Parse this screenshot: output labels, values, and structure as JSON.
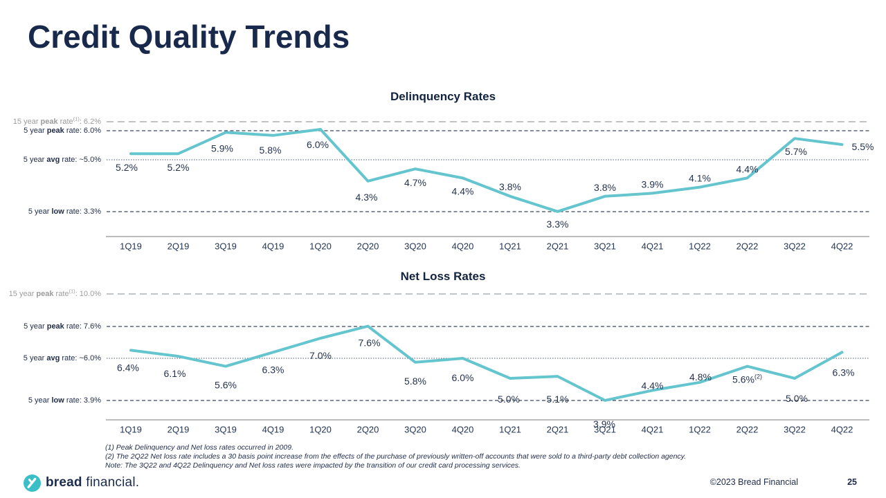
{
  "slide": {
    "title": "Credit Quality Trends",
    "copyright": "©2023 Bread Financial",
    "page_number": "25",
    "logo": {
      "bold": "bread",
      "regular": "financial."
    }
  },
  "colors": {
    "line_teal": "#64c5cf",
    "logo_teal": "#3bbfc6",
    "navy": "#18294b",
    "axis_gray": "#a6a6a6",
    "ref_dark": "#39445a",
    "ref_gray": "#9aa0a6"
  },
  "footnotes": [
    "(1) Peak Delinquency and Net loss rates occurred in 2009.",
    "(2) The 2Q22 Net loss rate includes a 30 basis point increase from the effects of the purchase of previously written-off accounts that were sold to a third-party debt collection agency.",
    "Note: The 3Q22 and 4Q22 Delinquency and Net loss rates were impacted by the transition of our credit card processing services."
  ],
  "chart_data": [
    {
      "type": "line",
      "title": "Delinquency Rates",
      "categories": [
        "1Q19",
        "2Q19",
        "3Q19",
        "4Q19",
        "1Q20",
        "2Q20",
        "3Q20",
        "4Q20",
        "1Q21",
        "2Q21",
        "3Q21",
        "4Q21",
        "1Q22",
        "2Q22",
        "3Q22",
        "4Q22"
      ],
      "values": [
        5.2,
        5.2,
        5.9,
        5.8,
        6.0,
        4.3,
        4.7,
        4.4,
        3.8,
        3.3,
        3.8,
        3.9,
        4.1,
        4.4,
        5.7,
        5.5
      ],
      "value_labels": [
        "5.2%",
        "5.2%",
        "5.9%",
        "5.8%",
        "6.0%",
        "4.3%",
        "4.7%",
        "4.4%",
        "3.8%",
        "3.3%",
        "3.8%",
        "3.9%",
        "4.1%",
        "4.4%",
        "5.7%",
        "5.5%"
      ],
      "label_superscripts": {},
      "ylim": [
        3.0,
        6.5
      ],
      "legend": "none",
      "reference_lines": [
        {
          "pre": "15 year ",
          "bold": "peak",
          "mid": " rate",
          "sup": "(1)",
          "post": ": 6.2%",
          "value": 6.2,
          "style": "long-dash-gray"
        },
        {
          "pre": "5 year ",
          "bold": "peak",
          "mid": " rate",
          "sup": "",
          "post": ": 6.0%",
          "value": 6.0,
          "style": "dash-dark"
        },
        {
          "pre": "5 year ",
          "bold": "avg",
          "mid": " rate",
          "sup": "",
          "post": ": ~5.0%",
          "value": 5.0,
          "style": "dot-dark"
        },
        {
          "pre": "5 year ",
          "bold": "low",
          "mid": " rate",
          "sup": "",
          "post": ": 3.3%",
          "value": 3.3,
          "style": "dash-dark"
        }
      ]
    },
    {
      "type": "line",
      "title": "Net Loss Rates",
      "categories": [
        "1Q19",
        "2Q19",
        "3Q19",
        "4Q19",
        "1Q20",
        "2Q20",
        "3Q20",
        "4Q20",
        "1Q21",
        "2Q21",
        "3Q21",
        "4Q21",
        "1Q22",
        "2Q22",
        "3Q22",
        "4Q22"
      ],
      "values": [
        6.4,
        6.1,
        5.6,
        6.3,
        7.0,
        7.6,
        5.8,
        6.0,
        5.0,
        5.1,
        3.9,
        4.4,
        4.8,
        5.6,
        5.0,
        6.3
      ],
      "value_labels": [
        "6.4%",
        "6.1%",
        "5.6%",
        "6.3%",
        "7.0%",
        "7.6%",
        "5.8%",
        "6.0%",
        "5.0%",
        "5.1%",
        "3.9%",
        "4.4%",
        "4.8%",
        "5.6%",
        "5.0%",
        "6.3%"
      ],
      "label_superscripts": {
        "13": "(2)"
      },
      "ylim": [
        3.5,
        10.0
      ],
      "legend": "none",
      "reference_lines": [
        {
          "pre": "15 year ",
          "bold": "peak",
          "mid": " rate",
          "sup": "(1)",
          "post": ": 10.0%",
          "value": 10.0,
          "style": "long-dash-gray"
        },
        {
          "pre": "5 year ",
          "bold": "peak",
          "mid": " rate",
          "sup": "",
          "post": ": 7.6%",
          "value": 7.6,
          "style": "dash-dark"
        },
        {
          "pre": "5 year ",
          "bold": "avg",
          "mid": " rate",
          "sup": "",
          "post": ": ~6.0%",
          "value": 6.0,
          "style": "dot-dark"
        },
        {
          "pre": "5 year ",
          "bold": "low",
          "mid": " rate",
          "sup": "",
          "post": ": 3.9%",
          "value": 3.9,
          "style": "dash-dark"
        }
      ]
    }
  ]
}
